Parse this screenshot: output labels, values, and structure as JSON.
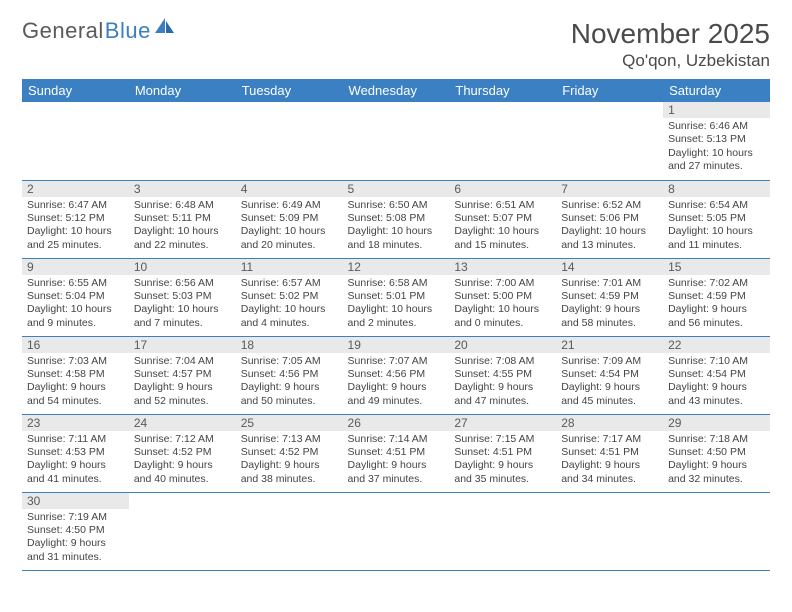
{
  "brand": {
    "general": "General",
    "blue": "Blue"
  },
  "title": {
    "month": "November 2025",
    "location": "Qo'qon, Uzbekistan"
  },
  "style": {
    "header_bg": "#3a80c2",
    "header_fg": "#ffffff",
    "daynum_bg": "#e9e9e9",
    "daynum_fg": "#5a5a5a",
    "row_border": "#3a80c2",
    "body_fg": "#444444",
    "page_bg": "#ffffff",
    "title_fg": "#4a4a4a",
    "logo_gray": "#5a5a5a",
    "logo_blue": "#3b7fbf",
    "font_month_pt": 28,
    "font_loc_pt": 17,
    "font_header_pt": 13,
    "font_daynum_pt": 12,
    "font_body_pt": 10.5
  },
  "weekdays": [
    "Sunday",
    "Monday",
    "Tuesday",
    "Wednesday",
    "Thursday",
    "Friday",
    "Saturday"
  ],
  "weeks": [
    [
      null,
      null,
      null,
      null,
      null,
      null,
      {
        "d": "1",
        "sunrise": "Sunrise: 6:46 AM",
        "sunset": "Sunset: 5:13 PM",
        "day": "Daylight: 10 hours and 27 minutes."
      }
    ],
    [
      {
        "d": "2",
        "sunrise": "Sunrise: 6:47 AM",
        "sunset": "Sunset: 5:12 PM",
        "day": "Daylight: 10 hours and 25 minutes."
      },
      {
        "d": "3",
        "sunrise": "Sunrise: 6:48 AM",
        "sunset": "Sunset: 5:11 PM",
        "day": "Daylight: 10 hours and 22 minutes."
      },
      {
        "d": "4",
        "sunrise": "Sunrise: 6:49 AM",
        "sunset": "Sunset: 5:09 PM",
        "day": "Daylight: 10 hours and 20 minutes."
      },
      {
        "d": "5",
        "sunrise": "Sunrise: 6:50 AM",
        "sunset": "Sunset: 5:08 PM",
        "day": "Daylight: 10 hours and 18 minutes."
      },
      {
        "d": "6",
        "sunrise": "Sunrise: 6:51 AM",
        "sunset": "Sunset: 5:07 PM",
        "day": "Daylight: 10 hours and 15 minutes."
      },
      {
        "d": "7",
        "sunrise": "Sunrise: 6:52 AM",
        "sunset": "Sunset: 5:06 PM",
        "day": "Daylight: 10 hours and 13 minutes."
      },
      {
        "d": "8",
        "sunrise": "Sunrise: 6:54 AM",
        "sunset": "Sunset: 5:05 PM",
        "day": "Daylight: 10 hours and 11 minutes."
      }
    ],
    [
      {
        "d": "9",
        "sunrise": "Sunrise: 6:55 AM",
        "sunset": "Sunset: 5:04 PM",
        "day": "Daylight: 10 hours and 9 minutes."
      },
      {
        "d": "10",
        "sunrise": "Sunrise: 6:56 AM",
        "sunset": "Sunset: 5:03 PM",
        "day": "Daylight: 10 hours and 7 minutes."
      },
      {
        "d": "11",
        "sunrise": "Sunrise: 6:57 AM",
        "sunset": "Sunset: 5:02 PM",
        "day": "Daylight: 10 hours and 4 minutes."
      },
      {
        "d": "12",
        "sunrise": "Sunrise: 6:58 AM",
        "sunset": "Sunset: 5:01 PM",
        "day": "Daylight: 10 hours and 2 minutes."
      },
      {
        "d": "13",
        "sunrise": "Sunrise: 7:00 AM",
        "sunset": "Sunset: 5:00 PM",
        "day": "Daylight: 10 hours and 0 minutes."
      },
      {
        "d": "14",
        "sunrise": "Sunrise: 7:01 AM",
        "sunset": "Sunset: 4:59 PM",
        "day": "Daylight: 9 hours and 58 minutes."
      },
      {
        "d": "15",
        "sunrise": "Sunrise: 7:02 AM",
        "sunset": "Sunset: 4:59 PM",
        "day": "Daylight: 9 hours and 56 minutes."
      }
    ],
    [
      {
        "d": "16",
        "sunrise": "Sunrise: 7:03 AM",
        "sunset": "Sunset: 4:58 PM",
        "day": "Daylight: 9 hours and 54 minutes."
      },
      {
        "d": "17",
        "sunrise": "Sunrise: 7:04 AM",
        "sunset": "Sunset: 4:57 PM",
        "day": "Daylight: 9 hours and 52 minutes."
      },
      {
        "d": "18",
        "sunrise": "Sunrise: 7:05 AM",
        "sunset": "Sunset: 4:56 PM",
        "day": "Daylight: 9 hours and 50 minutes."
      },
      {
        "d": "19",
        "sunrise": "Sunrise: 7:07 AM",
        "sunset": "Sunset: 4:56 PM",
        "day": "Daylight: 9 hours and 49 minutes."
      },
      {
        "d": "20",
        "sunrise": "Sunrise: 7:08 AM",
        "sunset": "Sunset: 4:55 PM",
        "day": "Daylight: 9 hours and 47 minutes."
      },
      {
        "d": "21",
        "sunrise": "Sunrise: 7:09 AM",
        "sunset": "Sunset: 4:54 PM",
        "day": "Daylight: 9 hours and 45 minutes."
      },
      {
        "d": "22",
        "sunrise": "Sunrise: 7:10 AM",
        "sunset": "Sunset: 4:54 PM",
        "day": "Daylight: 9 hours and 43 minutes."
      }
    ],
    [
      {
        "d": "23",
        "sunrise": "Sunrise: 7:11 AM",
        "sunset": "Sunset: 4:53 PM",
        "day": "Daylight: 9 hours and 41 minutes."
      },
      {
        "d": "24",
        "sunrise": "Sunrise: 7:12 AM",
        "sunset": "Sunset: 4:52 PM",
        "day": "Daylight: 9 hours and 40 minutes."
      },
      {
        "d": "25",
        "sunrise": "Sunrise: 7:13 AM",
        "sunset": "Sunset: 4:52 PM",
        "day": "Daylight: 9 hours and 38 minutes."
      },
      {
        "d": "26",
        "sunrise": "Sunrise: 7:14 AM",
        "sunset": "Sunset: 4:51 PM",
        "day": "Daylight: 9 hours and 37 minutes."
      },
      {
        "d": "27",
        "sunrise": "Sunrise: 7:15 AM",
        "sunset": "Sunset: 4:51 PM",
        "day": "Daylight: 9 hours and 35 minutes."
      },
      {
        "d": "28",
        "sunrise": "Sunrise: 7:17 AM",
        "sunset": "Sunset: 4:51 PM",
        "day": "Daylight: 9 hours and 34 minutes."
      },
      {
        "d": "29",
        "sunrise": "Sunrise: 7:18 AM",
        "sunset": "Sunset: 4:50 PM",
        "day": "Daylight: 9 hours and 32 minutes."
      }
    ],
    [
      {
        "d": "30",
        "sunrise": "Sunrise: 7:19 AM",
        "sunset": "Sunset: 4:50 PM",
        "day": "Daylight: 9 hours and 31 minutes."
      },
      null,
      null,
      null,
      null,
      null,
      null
    ]
  ]
}
